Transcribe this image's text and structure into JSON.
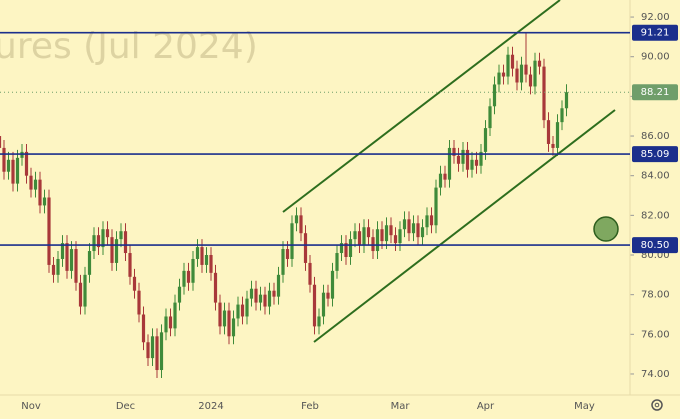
{
  "chart_data": {
    "type": "candlestick",
    "watermark": "ures (Jul 2024)",
    "categories": [
      null,
      null,
      null,
      null,
      null,
      null,
      null,
      "Nov",
      null,
      null,
      null,
      null,
      null,
      null,
      null,
      null,
      null,
      null,
      null,
      null,
      null,
      null,
      null,
      null,
      null,
      null,
      null,
      null,
      "Dec",
      null,
      null,
      null,
      null,
      null,
      null,
      null,
      null,
      null,
      null,
      null,
      null,
      null,
      null,
      null,
      null,
      null,
      null,
      "2024",
      null,
      null,
      null,
      null,
      null,
      null,
      null,
      null,
      null,
      null,
      null,
      null,
      null,
      null,
      null,
      null,
      null,
      null,
      null,
      null,
      null,
      "Feb",
      null,
      null,
      null,
      null,
      null,
      null,
      null,
      null,
      null,
      null,
      null,
      null,
      null,
      null,
      null,
      null,
      null,
      null,
      null,
      "Mar",
      null,
      null,
      null,
      null,
      null,
      null,
      null,
      null,
      null,
      null,
      null,
      null,
      null,
      null,
      null,
      null,
      null,
      null,
      "Apr",
      null,
      null,
      null,
      null,
      null,
      null,
      null,
      null,
      null,
      null,
      null,
      null,
      null,
      null,
      null,
      null,
      null,
      null,
      null,
      null,
      null,
      "May"
    ],
    "open": [
      86.0,
      85.4,
      84.2,
      84.8,
      83.6,
      84.9,
      85.2,
      84.0,
      83.3,
      83.8,
      82.5,
      82.9,
      79.5,
      79.0,
      79.8,
      80.6,
      79.2,
      80.3,
      78.6,
      77.4,
      79.0,
      80.2,
      81.0,
      80.4,
      81.3,
      80.9,
      79.6,
      80.8,
      81.2,
      80.1,
      78.9,
      78.2,
      77.0,
      75.6,
      74.8,
      75.9,
      74.2,
      76.1,
      76.9,
      76.3,
      77.6,
      78.4,
      79.2,
      78.6,
      79.8,
      80.4,
      79.5,
      80.0,
      79.1,
      77.6,
      76.4,
      77.2,
      75.9,
      76.8,
      77.5,
      76.9,
      77.8,
      78.3,
      77.6,
      78.0,
      77.4,
      78.2,
      77.9,
      79.0,
      80.3,
      79.8,
      81.6,
      82.0,
      81.1,
      79.6,
      78.5,
      76.4,
      76.9,
      78.1,
      77.8,
      79.2,
      80.1,
      80.6,
      79.9,
      80.8,
      81.2,
      80.5,
      81.4,
      80.9,
      80.2,
      81.3,
      80.7,
      81.5,
      81.0,
      80.6,
      81.3,
      81.8,
      81.1,
      81.6,
      80.9,
      81.4,
      82.0,
      81.5,
      83.4,
      84.1,
      83.8,
      85.4,
      85.0,
      84.6,
      85.3,
      84.3,
      84.8,
      84.5,
      85.2,
      86.4,
      87.5,
      88.6,
      89.2,
      89.0,
      90.1,
      89.4,
      88.7,
      89.6,
      89.1,
      88.5,
      89.8,
      89.5,
      86.8,
      85.6,
      85.4,
      86.7,
      87.4,
      null,
      null,
      null,
      null
    ],
    "high": [
      86.4,
      85.8,
      85.2,
      85.2,
      85.3,
      85.6,
      85.6,
      84.4,
      84.2,
      84.2,
      83.3,
      83.3,
      79.9,
      80.2,
      81.0,
      81.0,
      80.7,
      80.7,
      79.0,
      79.4,
      80.6,
      81.4,
      81.4,
      81.7,
      81.7,
      81.3,
      81.2,
      81.6,
      81.6,
      80.5,
      79.3,
      78.6,
      77.4,
      76.0,
      76.3,
      76.3,
      76.5,
      77.3,
      77.3,
      78.0,
      78.8,
      79.6,
      79.6,
      80.2,
      80.8,
      80.8,
      80.4,
      80.4,
      79.5,
      78.0,
      77.6,
      77.6,
      77.2,
      77.9,
      77.9,
      78.2,
      78.7,
      78.7,
      78.4,
      78.4,
      78.6,
      78.6,
      79.4,
      80.7,
      80.7,
      82.0,
      82.4,
      82.4,
      81.5,
      80.0,
      78.9,
      77.3,
      78.5,
      78.5,
      79.6,
      80.5,
      81.0,
      81.0,
      81.2,
      81.6,
      81.6,
      81.8,
      81.8,
      81.3,
      81.7,
      81.7,
      81.9,
      81.9,
      81.4,
      81.7,
      82.2,
      82.2,
      82.0,
      82.0,
      81.8,
      82.4,
      82.4,
      83.8,
      84.5,
      84.5,
      85.8,
      85.8,
      85.4,
      85.7,
      85.7,
      85.2,
      85.2,
      85.6,
      86.8,
      87.9,
      89.0,
      89.6,
      89.6,
      90.5,
      90.5,
      89.8,
      90.0,
      91.2,
      89.5,
      90.2,
      90.2,
      89.9,
      87.2,
      86.0,
      87.1,
      87.8,
      88.61,
      null,
      null,
      null,
      null
    ],
    "low": [
      85.0,
      83.8,
      83.8,
      83.2,
      83.2,
      84.5,
      83.6,
      82.9,
      82.9,
      82.1,
      82.1,
      79.1,
      78.6,
      78.6,
      79.4,
      78.8,
      78.8,
      78.2,
      77.0,
      77.0,
      78.6,
      79.8,
      80.0,
      80.0,
      80.5,
      79.2,
      79.2,
      80.4,
      79.7,
      78.5,
      77.8,
      76.6,
      75.2,
      74.4,
      74.4,
      73.8,
      73.8,
      75.7,
      75.9,
      75.9,
      77.2,
      78.0,
      78.2,
      78.2,
      79.4,
      79.1,
      79.1,
      78.7,
      77.2,
      76.0,
      76.0,
      75.5,
      75.5,
      76.4,
      76.5,
      76.5,
      77.4,
      77.2,
      77.2,
      77.0,
      77.0,
      77.5,
      77.5,
      78.6,
      79.4,
      79.4,
      81.2,
      80.7,
      79.2,
      78.1,
      76.0,
      76.0,
      76.5,
      77.4,
      77.4,
      78.8,
      79.7,
      79.5,
      79.5,
      80.4,
      80.1,
      80.1,
      80.5,
      79.8,
      79.8,
      80.3,
      80.3,
      80.6,
      80.2,
      80.2,
      80.9,
      80.7,
      80.7,
      80.5,
      80.5,
      81.0,
      81.1,
      81.1,
      83.0,
      83.4,
      83.4,
      84.6,
      84.2,
      84.2,
      83.9,
      83.9,
      84.1,
      84.1,
      84.8,
      86.0,
      87.1,
      88.2,
      88.6,
      88.6,
      89.0,
      88.3,
      88.3,
      88.7,
      88.1,
      88.1,
      89.1,
      86.4,
      85.2,
      85.0,
      85.0,
      86.3,
      87.0,
      null,
      null,
      null,
      null
    ],
    "close": [
      85.4,
      84.2,
      84.8,
      83.6,
      84.9,
      85.2,
      84.0,
      83.3,
      83.8,
      82.5,
      82.9,
      79.5,
      79.0,
      79.8,
      80.6,
      79.2,
      80.3,
      78.6,
      77.4,
      79.0,
      80.2,
      81.0,
      80.4,
      81.3,
      80.9,
      79.6,
      80.8,
      81.2,
      80.1,
      78.9,
      78.2,
      77.0,
      75.6,
      74.8,
      75.9,
      74.2,
      76.1,
      76.9,
      76.3,
      77.6,
      78.4,
      79.2,
      78.6,
      79.8,
      80.4,
      79.5,
      80.0,
      79.1,
      77.6,
      76.4,
      77.2,
      75.9,
      76.8,
      77.5,
      76.9,
      77.8,
      78.3,
      77.6,
      78.0,
      77.4,
      78.2,
      77.9,
      79.0,
      80.3,
      79.8,
      81.6,
      82.0,
      81.1,
      79.6,
      78.5,
      76.4,
      76.9,
      78.1,
      77.8,
      79.2,
      80.1,
      80.6,
      79.9,
      80.8,
      81.2,
      80.5,
      81.4,
      80.9,
      80.2,
      81.3,
      80.7,
      81.5,
      81.0,
      80.6,
      81.3,
      81.8,
      81.1,
      81.6,
      80.9,
      81.4,
      82.0,
      81.5,
      83.4,
      84.1,
      83.8,
      85.4,
      85.0,
      84.6,
      85.3,
      84.3,
      84.8,
      84.5,
      85.2,
      86.4,
      87.5,
      88.6,
      89.2,
      89.0,
      90.1,
      89.4,
      88.7,
      89.6,
      89.1,
      88.5,
      89.8,
      89.5,
      86.8,
      85.6,
      85.4,
      86.7,
      87.4,
      88.21,
      null,
      null,
      null,
      null
    ],
    "up_color": "#3f8a3a",
    "down_color": "#a8383a",
    "ylim": [
      72.94,
      92.86
    ],
    "yticks": [
      {
        "value": 74,
        "label": "74.00"
      },
      {
        "value": 76,
        "label": "76.00"
      },
      {
        "value": 78,
        "label": "78.00"
      },
      {
        "value": 80,
        "label": "80.00"
      },
      {
        "value": 82,
        "label": "82.00"
      },
      {
        "value": 84,
        "label": "84.00"
      },
      {
        "value": 86,
        "label": "86.00"
      },
      {
        "value": 88,
        "label": "88.00"
      },
      {
        "value": 90,
        "label": "90.00"
      },
      {
        "value": 92,
        "label": "92.00"
      }
    ],
    "levels": {
      "values": [
        91.21,
        85.09,
        80.5
      ],
      "value_labels": [
        "91.21",
        "85.09",
        "80.50"
      ],
      "color": "#1b2f8c"
    },
    "last_price": {
      "value": 88.21,
      "label": "88.21",
      "color": "#6f9e6a"
    }
  }
}
